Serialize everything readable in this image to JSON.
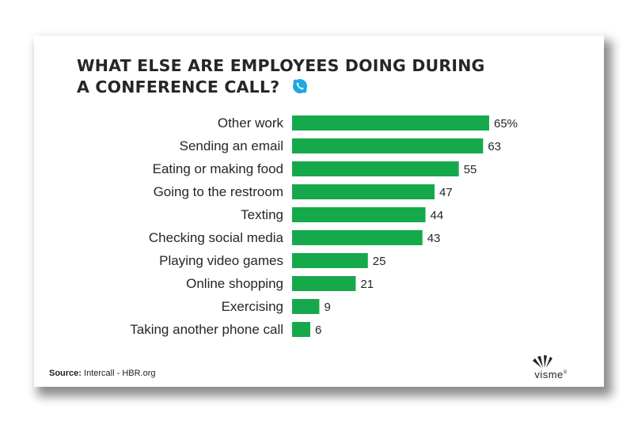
{
  "title_line1": "WHAT ELSE ARE EMPLOYEES DOING DURING",
  "title_line2": "A CONFERENCE CALL?",
  "icon": "skype-phone-icon",
  "source_label": "Source:",
  "source_text": " Intercall - HBR.org",
  "brand": "visme",
  "brand_registered": "®",
  "colors": {
    "bar": "#16a94c",
    "text": "#262626",
    "icon": "#1fa7e0"
  },
  "chart_data": {
    "type": "bar",
    "orientation": "horizontal",
    "categories": [
      "Other work",
      "Sending an email",
      "Eating or making food",
      "Going to the restroom",
      "Texting",
      "Checking social media",
      "Playing video games",
      "Online shopping",
      "Exercising",
      "Taking another phone call"
    ],
    "values": [
      65,
      63,
      55,
      47,
      44,
      43,
      25,
      21,
      9,
      6
    ],
    "value_labels": [
      "65%",
      "63",
      "55",
      "47",
      "44",
      "43",
      "25",
      "21",
      "9",
      "6"
    ],
    "unit": "%",
    "xlim": [
      0,
      65
    ],
    "grid": false,
    "legend": "none"
  }
}
